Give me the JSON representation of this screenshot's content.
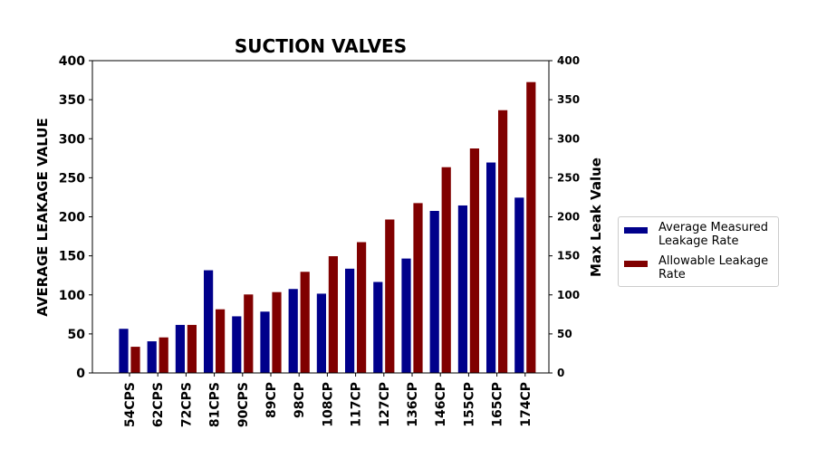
{
  "chart_data": {
    "type": "bar",
    "title": "SUCTION VALVES",
    "ylabel": "AVERAGE LEAKAGE VALUE",
    "y2label": "Max Leak Value",
    "xlabel": "",
    "ylim": [
      0,
      400
    ],
    "y2lim": [
      0,
      400
    ],
    "yticks": [
      0,
      50,
      100,
      150,
      200,
      250,
      300,
      350,
      400
    ],
    "categories": [
      "54CPS",
      "62CPS",
      "72CPS",
      "81CPS",
      "90CPS",
      "89CP",
      "98CP",
      "108CP",
      "117CP",
      "127CP",
      "136CP",
      "146CP",
      "155CP",
      "165CP",
      "174CP"
    ],
    "series": [
      {
        "name": "Average Measured Leakage Rate",
        "color": "#00008b",
        "values": [
          57,
          41,
          62,
          132,
          73,
          79,
          108,
          102,
          134,
          117,
          147,
          208,
          215,
          270,
          225
        ]
      },
      {
        "name": "Allowable Leakage Rate",
        "color": "#800000",
        "values": [
          34,
          46,
          62,
          82,
          101,
          104,
          130,
          150,
          168,
          197,
          218,
          264,
          288,
          337,
          373
        ]
      }
    ],
    "legend": {
      "position": "right",
      "entries": [
        "Average Measured\nLeakage Rate",
        "Allowable Leakage\nRate"
      ]
    },
    "grid": false
  }
}
